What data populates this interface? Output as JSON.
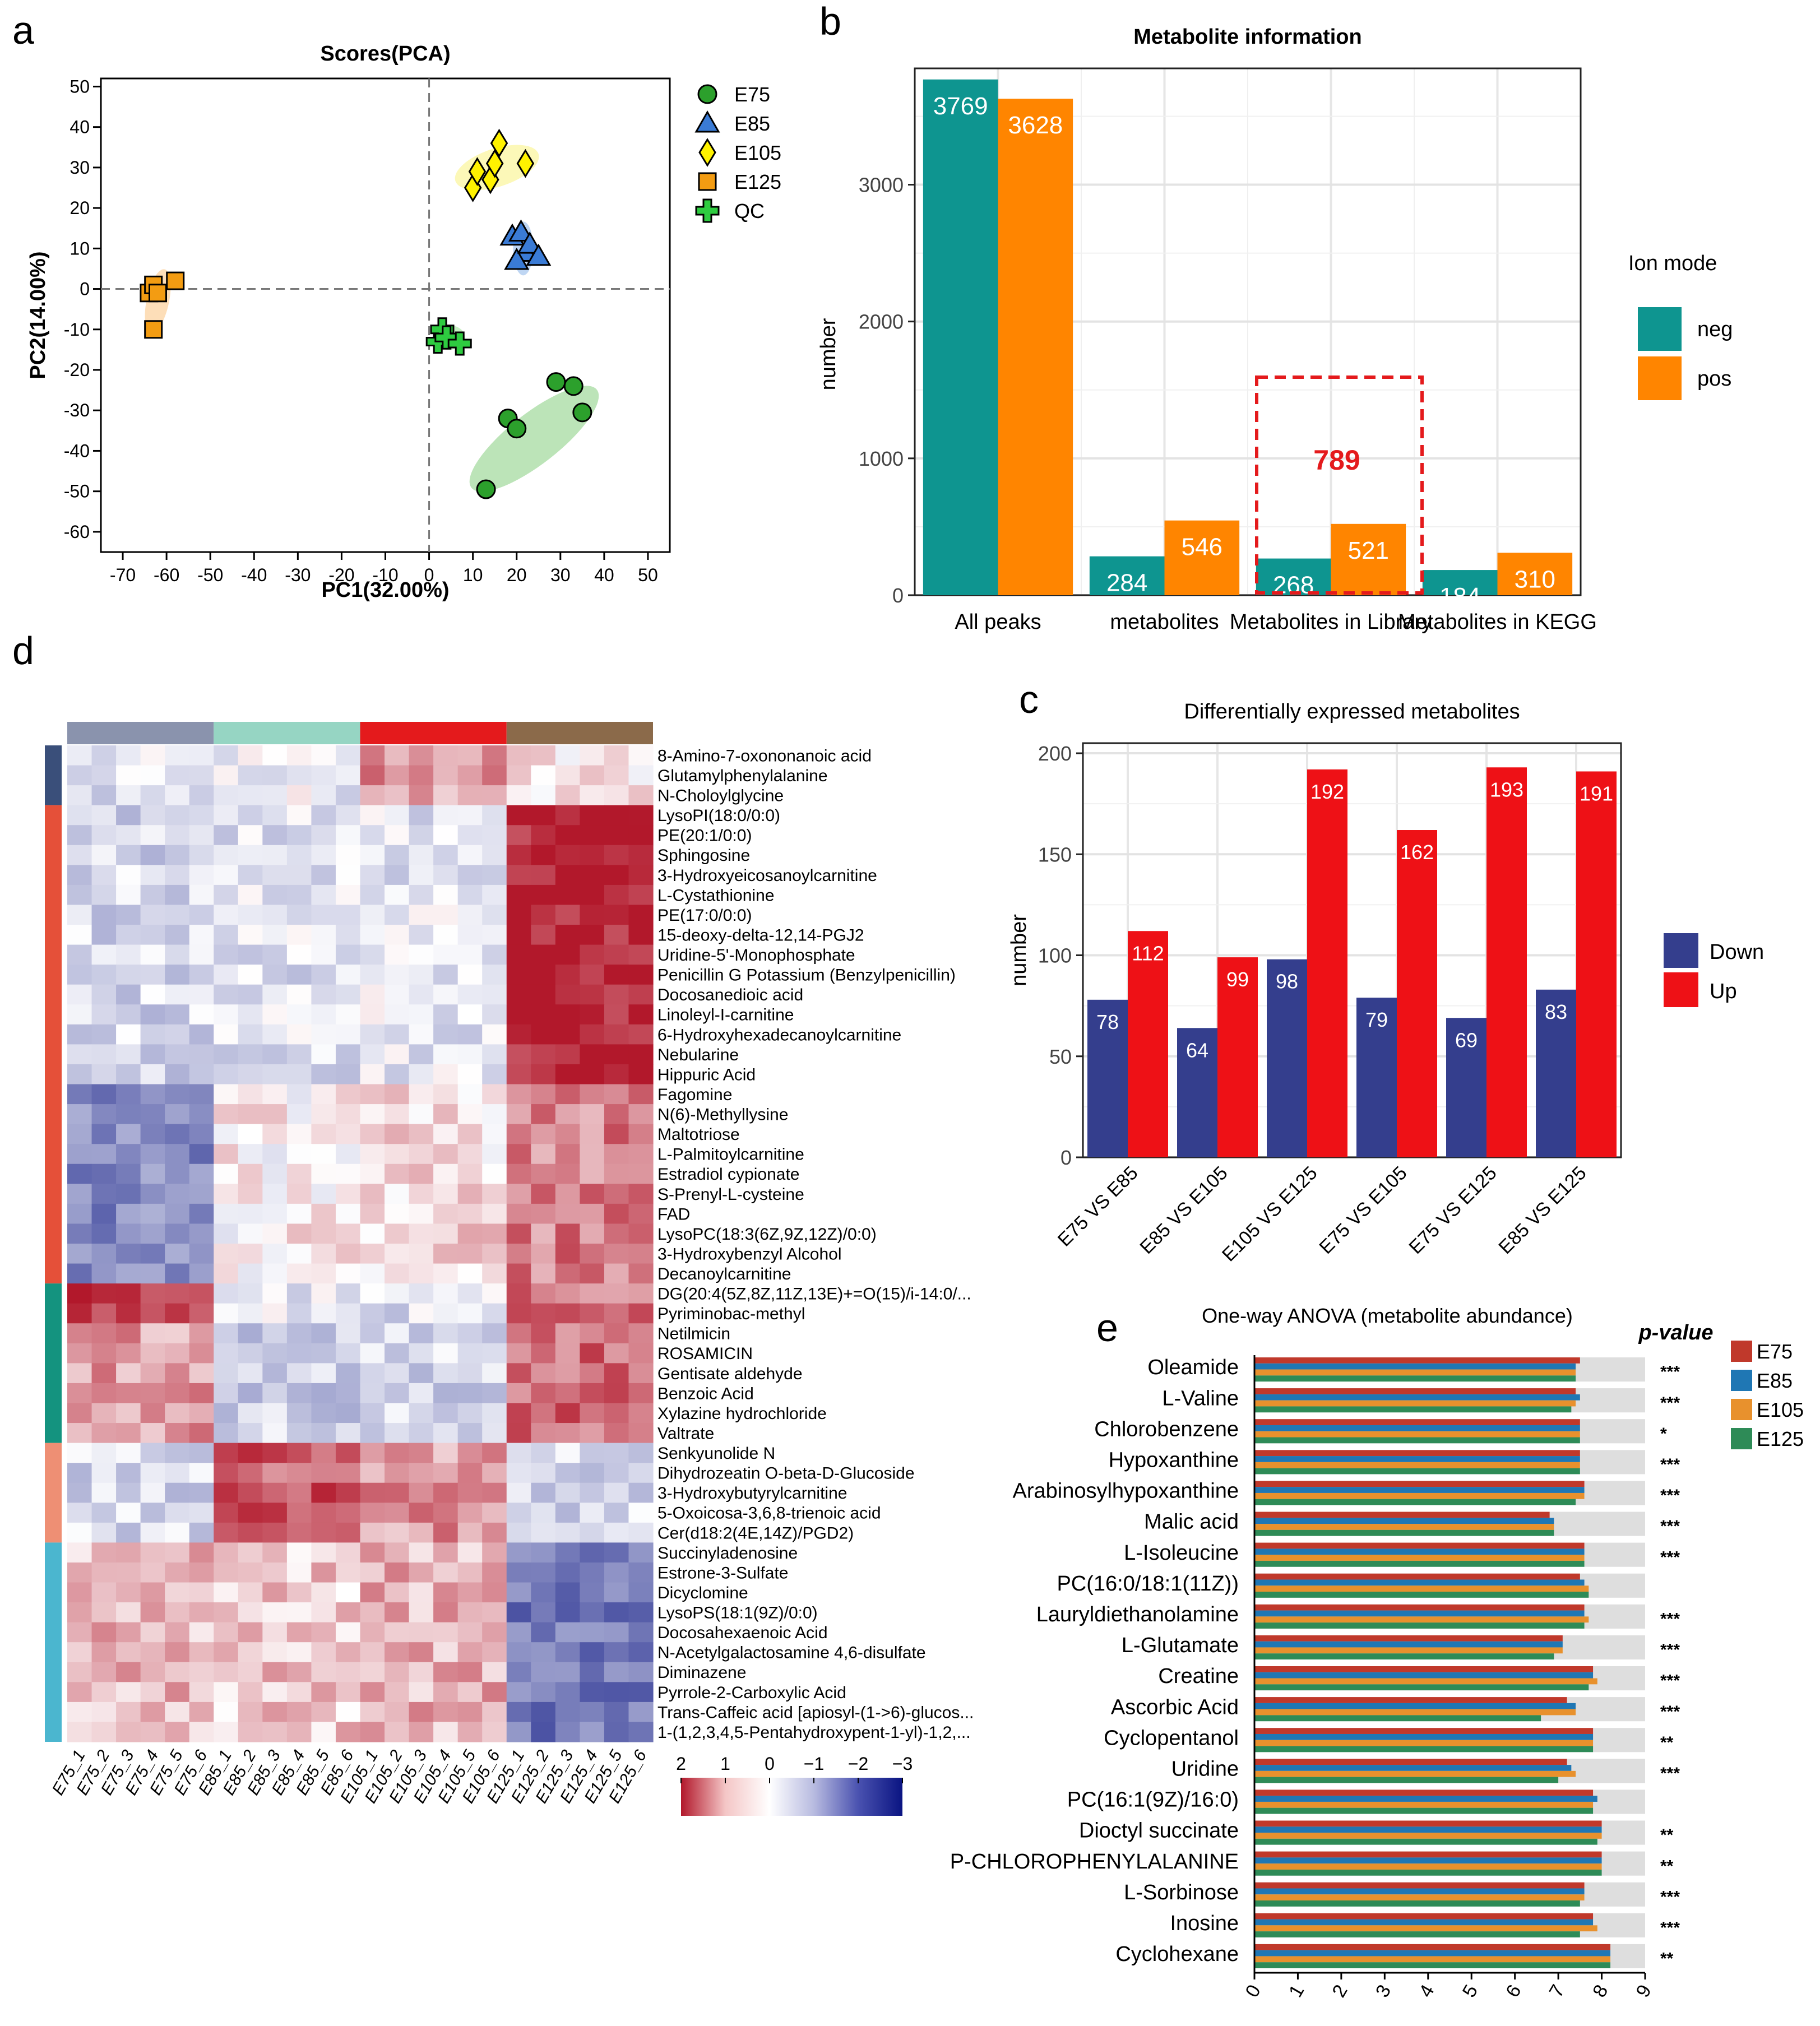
{
  "colors": {
    "neg": "#0e9590",
    "pos": "#ff8500",
    "down": "#343e8d",
    "up": "#ee1116",
    "highlight": "#e41a1c",
    "E75": "#c0392b",
    "E85": "#1f77b4",
    "E105": "#e8912d",
    "E125": "#2e8b57"
  },
  "chart_data": [
    {
      "panel": "a",
      "type": "scatter",
      "title": "Scores(PCA)",
      "xlabel": "PC1(32.00%)",
      "ylabel": "PC2(14.00%)",
      "xlim": [
        -75,
        55
      ],
      "ylim": [
        -65,
        52
      ],
      "xticks": [
        -70,
        -60,
        -50,
        -40,
        -30,
        -20,
        -10,
        0,
        10,
        20,
        30,
        40,
        50
      ],
      "yticks": [
        50,
        40,
        30,
        20,
        10,
        0,
        -10,
        -20,
        -30,
        -40,
        -50,
        -60
      ],
      "legend": [
        "E75",
        "E85",
        "E105",
        "E125",
        "QC"
      ],
      "series": [
        {
          "name": "E75",
          "marker": "circle",
          "color": "#2ca02c",
          "x": [
            13,
            18,
            20,
            29,
            33,
            35
          ],
          "y": [
            -49.5,
            -32,
            -34.5,
            -23,
            -24,
            -30.5
          ]
        },
        {
          "name": "E85",
          "marker": "triangle",
          "color": "#3a7bd5",
          "x": [
            19,
            21,
            22,
            20,
            23,
            25
          ],
          "y": [
            13,
            14,
            9,
            7,
            11,
            8
          ]
        },
        {
          "name": "E105",
          "marker": "diamond",
          "color": "#fff200",
          "x": [
            10,
            11,
            14,
            15,
            16,
            22
          ],
          "y": [
            25,
            29,
            27,
            31,
            36,
            31
          ]
        },
        {
          "name": "E125",
          "marker": "square",
          "color": "#f39c12",
          "x": [
            -64,
            -63,
            -62,
            -58,
            -63
          ],
          "y": [
            -1,
            1,
            -1,
            2,
            -10
          ]
        },
        {
          "name": "QC",
          "marker": "cross",
          "color": "#2ecc40",
          "x": [
            2,
            3,
            4,
            7
          ],
          "y": [
            -13,
            -10,
            -12,
            -13.5
          ]
        }
      ]
    },
    {
      "panel": "b",
      "type": "bar",
      "title": "Metabolite information",
      "ylabel": "number",
      "ylim": [
        0,
        3850
      ],
      "yticks": [
        0,
        1000,
        2000,
        3000
      ],
      "categories": [
        "All peaks",
        "metabolites",
        "Metabolites in Library",
        "Metabolites in KEGG"
      ],
      "series": [
        {
          "name": "neg",
          "values": [
            3769,
            284,
            268,
            184
          ]
        },
        {
          "name": "pos",
          "values": [
            3628,
            546,
            521,
            310
          ]
        }
      ],
      "legend_title": "Ion mode",
      "annotation": "789"
    },
    {
      "panel": "c",
      "type": "bar",
      "title": "Differentially expressed  metabolites",
      "ylabel": "number",
      "ylim": [
        0,
        205
      ],
      "yticks": [
        0,
        50,
        100,
        150,
        200
      ],
      "categories": [
        "E75 VS E85",
        "E85 VS E105",
        "E105 VS E125",
        "E75 VS E105",
        "E75 VS E125",
        "E85 VS E125"
      ],
      "series": [
        {
          "name": "Down",
          "values": [
            78,
            64,
            98,
            79,
            69,
            83
          ]
        },
        {
          "name": "Up",
          "values": [
            112,
            99,
            192,
            162,
            193,
            191
          ]
        }
      ]
    },
    {
      "panel": "d",
      "type": "heatmap",
      "columns": [
        "E75_1",
        "E75_2",
        "E75_3",
        "E75_4",
        "E75_5",
        "E75_6",
        "E85_1",
        "E85_2",
        "E85_3",
        "E85_4",
        "E85_5",
        "E85_6",
        "E105_1",
        "E105_2",
        "E105_3",
        "E105_4",
        "E105_5",
        "E105_6",
        "E125_1",
        "E125_2",
        "E125_3",
        "E125_4",
        "E125_5",
        "E125_6"
      ],
      "rows": [
        "8-Amino-7-oxononanoic acid",
        "Glutamylphenylalanine",
        "N-Choloylglycine",
        "LysoPI(18:0/0:0)",
        "PE(20:1/0:0)",
        "Sphingosine",
        "3-Hydroxyeicosanoylcarnitine",
        "L-Cystathionine",
        "PE(17:0/0:0)",
        "15-deoxy-delta-12,14-PGJ2",
        "Uridine-5'-Monophosphate",
        "Penicillin G Potassium (Benzylpenicillin)",
        "Docosanedioic acid",
        "Linoleyl-I-carnitine",
        "6-Hydroxyhexadecanoylcarnitine",
        "Nebularine",
        "Hippuric Acid",
        "Fagomine",
        "N(6)-Methyllysine",
        "Maltotriose",
        "L-Palmitoylcarnitine",
        "Estradiol cypionate",
        "S-Prenyl-L-cysteine",
        "FAD",
        "LysoPC(18:3(6Z,9Z,12Z)/0:0)",
        "3-Hydroxybenzyl Alcohol",
        "Decanoylcarnitine",
        "DG(20:4(5Z,8Z,11Z,13E)+=O(15)/i-14:0/...",
        "Pyriminobac-methyl",
        "Netilmicin",
        "ROSAMICIN",
        "Gentisate aldehyde",
        "Benzoic Acid",
        "Xylazine hydrochloride",
        "Valtrate",
        "Senkyunolide N",
        "Dihydrozeatin O-beta-D-Glucoside",
        "3-Hydroxybutyrylcarnitine",
        "5-Oxoicosa-3,6,8-trienoic acid",
        "Cer(d18:2(4E,14Z)/PGD2)",
        "Succinyladenosine",
        "Estrone-3-Sulfate",
        "Dicyclomine",
        "LysoPS(18:1(9Z)/0:0)",
        "Docosahexaenoic Acid",
        "N-Acetylgalactosamine 4,6-disulfate",
        "Diminazene",
        "Pyrrole-2-Carboxylic Acid",
        "Trans-Caffeic acid [apiosyl-(1->6)-glucos...",
        "1-(1,2,3,4,5-Pentahydroxypent-1-yl)-1,2,..."
      ],
      "colorbar_ticks": [
        "2",
        "1",
        "0",
        "−1",
        "−2",
        "−3"
      ],
      "group_colors": [
        "#8a93ad",
        "#96d5c3",
        "#e41a1c",
        "#8b6a4a"
      ]
    },
    {
      "panel": "e",
      "type": "bar",
      "orientation": "horizontal",
      "title": "One-way ANOVA (metabolite abundance)",
      "pvalue_header": "p-value",
      "xlim": [
        0,
        9
      ],
      "xticks": [
        "0",
        "1",
        "2",
        "3",
        "4",
        "5",
        "6",
        "7",
        "8",
        "9"
      ],
      "categories": [
        "Oleamide",
        "L-Valine",
        "Chlorobenzene",
        "Hypoxanthine",
        "Arabinosylhypoxanthine",
        "Malic acid",
        "L-Isoleucine",
        "PC(16:0/18:1(11Z))",
        "Lauryldiethanolamine",
        "L-Glutamate",
        "Creatine",
        "Ascorbic Acid",
        "Cyclopentanol",
        "Uridine",
        "PC(16:1(9Z)/16:0)",
        "Dioctyl succinate",
        "P-CHLOROPHENYLALANINE",
        "L-Sorbinose",
        "Inosine",
        "Cyclohexane"
      ],
      "pvalues": [
        "***",
        "***",
        "*",
        "***",
        "***",
        "***",
        "***",
        "",
        "***",
        "***",
        "***",
        "***",
        "**",
        "***",
        "",
        "**",
        "**",
        "***",
        "***",
        "**"
      ],
      "series": [
        {
          "name": "E75",
          "values": [
            7.5,
            7.4,
            7.5,
            7.5,
            7.6,
            6.8,
            7.6,
            7.5,
            7.6,
            7.1,
            7.8,
            7.2,
            7.8,
            7.2,
            7.8,
            8.0,
            8.0,
            7.6,
            7.8,
            8.2
          ]
        },
        {
          "name": "E85",
          "values": [
            7.4,
            7.5,
            7.5,
            7.5,
            7.6,
            6.9,
            7.6,
            7.6,
            7.6,
            7.1,
            7.8,
            7.4,
            7.8,
            7.3,
            7.9,
            8.0,
            8.0,
            7.6,
            7.8,
            8.2
          ]
        },
        {
          "name": "E105",
          "values": [
            7.4,
            7.4,
            7.5,
            7.5,
            7.6,
            6.9,
            7.6,
            7.7,
            7.7,
            7.1,
            7.9,
            7.4,
            7.8,
            7.4,
            7.8,
            8.0,
            8.0,
            7.6,
            7.9,
            8.2
          ]
        },
        {
          "name": "E125",
          "values": [
            7.4,
            7.3,
            7.5,
            7.5,
            7.4,
            6.9,
            7.6,
            7.7,
            7.6,
            6.9,
            7.7,
            6.6,
            7.8,
            7.0,
            7.8,
            7.9,
            8.0,
            7.5,
            7.5,
            8.2
          ]
        }
      ]
    }
  ],
  "panel_labels": {
    "a": "a",
    "b": "b",
    "c": "c",
    "d": "d",
    "e": "e"
  }
}
